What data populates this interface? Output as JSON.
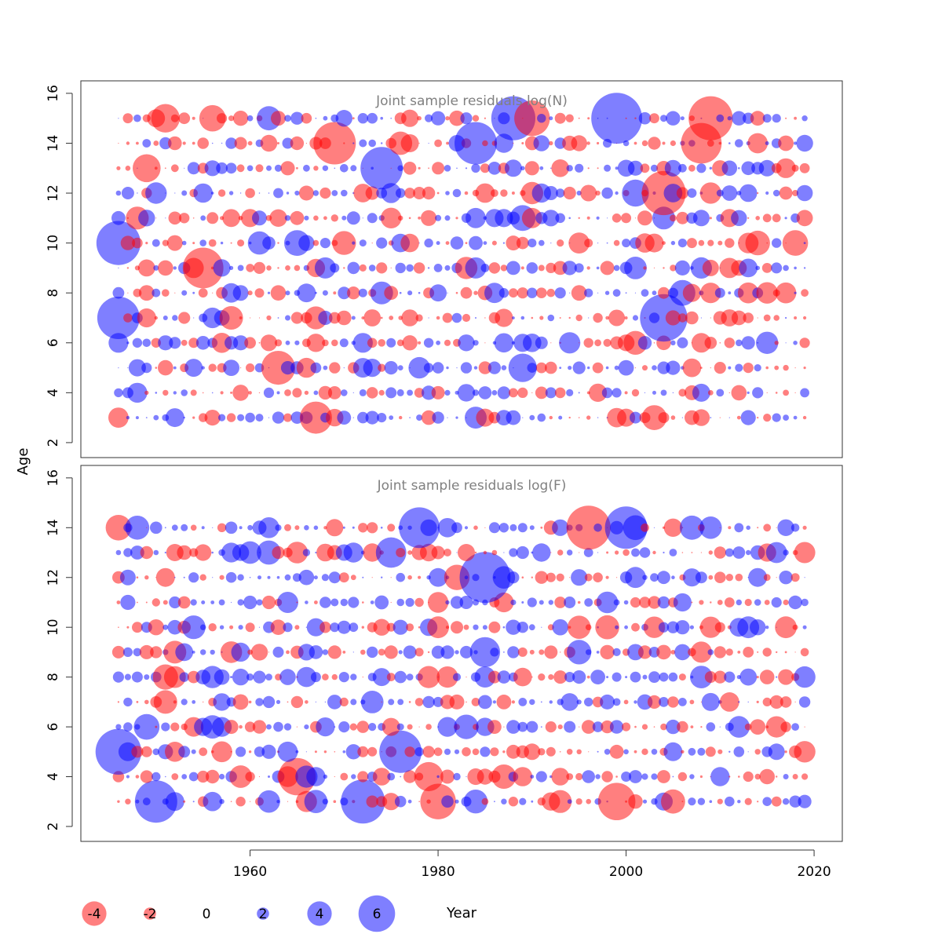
{
  "chart_data": [
    {
      "type": "scatter",
      "subtype": "bubble",
      "title": "Joint sample residuals log(N)",
      "xlabel": "",
      "ylabel": "Age",
      "xlim": [
        1942,
        2023
      ],
      "ylim": [
        1.4,
        16.5
      ],
      "yticks": [
        2,
        4,
        6,
        8,
        10,
        12,
        14,
        16
      ],
      "years": [
        1946,
        2019
      ],
      "ages": [
        3,
        4,
        5,
        6,
        7,
        8,
        9,
        10,
        11,
        12,
        13,
        14,
        15
      ],
      "notable_points": [
        {
          "x": 1946,
          "y": 10,
          "value": 5.2
        },
        {
          "x": 1946,
          "y": 7,
          "value": 5.0
        },
        {
          "x": 1955,
          "y": 9,
          "value": -4.8
        },
        {
          "x": 1969,
          "y": 14,
          "value": -5.0
        },
        {
          "x": 1974,
          "y": 13,
          "value": 5.0
        },
        {
          "x": 1988,
          "y": 15,
          "value": 5.2
        },
        {
          "x": 1999,
          "y": 15,
          "value": 6.0
        },
        {
          "x": 2004,
          "y": 7,
          "value": 5.6
        },
        {
          "x": 2004,
          "y": 12,
          "value": -5.2
        },
        {
          "x": 2009,
          "y": 15,
          "value": -5.2
        },
        {
          "x": 2008,
          "y": 14,
          "value": -4.8
        },
        {
          "x": 1963,
          "y": 5,
          "value": -4.0
        },
        {
          "x": 1967,
          "y": 3,
          "value": -3.8
        },
        {
          "x": 1984,
          "y": 14,
          "value": 5.0
        },
        {
          "x": 1990,
          "y": 15,
          "value": -4.2
        }
      ]
    },
    {
      "type": "scatter",
      "subtype": "bubble",
      "title": "Joint sample residuals log(F)",
      "xlabel": "Year",
      "ylabel": "Age",
      "xlim": [
        1942,
        2023
      ],
      "ylim": [
        1.4,
        16.5
      ],
      "xticks": [
        1960,
        1980,
        2000,
        2020
      ],
      "yticks": [
        2,
        4,
        6,
        8,
        10,
        12,
        14,
        16
      ],
      "years": [
        1946,
        2019
      ],
      "ages": [
        3,
        4,
        5,
        6,
        7,
        8,
        9,
        10,
        11,
        12,
        13,
        14
      ],
      "notable_points": [
        {
          "x": 1946,
          "y": 5,
          "value": 5.4
        },
        {
          "x": 1950,
          "y": 3,
          "value": 5.0
        },
        {
          "x": 1972,
          "y": 3,
          "value": 5.2
        },
        {
          "x": 1976,
          "y": 5,
          "value": 5.0
        },
        {
          "x": 1985,
          "y": 12,
          "value": 6.0
        },
        {
          "x": 1996,
          "y": 14,
          "value": -5.2
        },
        {
          "x": 2000,
          "y": 14,
          "value": 5.0
        },
        {
          "x": 1999,
          "y": 3,
          "value": -4.4
        },
        {
          "x": 1980,
          "y": 3,
          "value": -4.2
        },
        {
          "x": 1978,
          "y": 14,
          "value": 4.8
        },
        {
          "x": 1965,
          "y": 4,
          "value": -4.4
        }
      ]
    }
  ],
  "legend": {
    "values": [
      "-4",
      "-2",
      "0",
      "2",
      "4",
      "6"
    ],
    "title": "Year",
    "colors": {
      "negative": "#ff0000",
      "positive": "#0000ff"
    },
    "alpha": 0.5
  }
}
